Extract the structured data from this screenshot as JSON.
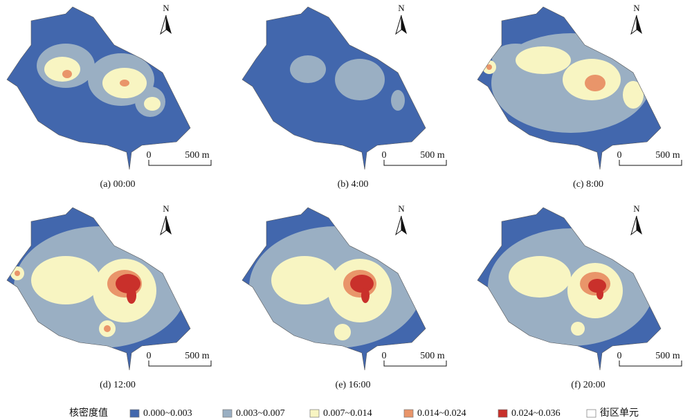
{
  "panels": [
    {
      "caption": "(a) 00:00",
      "north": "N",
      "scale_start": "0",
      "scale_end": "500 m"
    },
    {
      "caption": "(b) 4:00",
      "north": "N",
      "scale_start": "0",
      "scale_end": "500 m"
    },
    {
      "caption": "(c) 8:00",
      "north": "N",
      "scale_start": "0",
      "scale_end": "500 m"
    },
    {
      "caption": "(d) 12:00",
      "north": "N",
      "scale_start": "0",
      "scale_end": "500 m"
    },
    {
      "caption": "(e) 16:00",
      "north": "N",
      "scale_start": "0",
      "scale_end": "500 m"
    },
    {
      "caption": "(f) 20:00",
      "north": "N",
      "scale_start": "0",
      "scale_end": "500 m"
    }
  ],
  "legend": {
    "title": "核密度值",
    "items": [
      {
        "label": "0.000~0.003",
        "color": "#4267ad"
      },
      {
        "label": "0.003~0.007",
        "color": "#9aafc3"
      },
      {
        "label": "0.007~0.014",
        "color": "#f8f5c2"
      },
      {
        "label": "0.014~0.024",
        "color": "#e9956a"
      },
      {
        "label": "0.024~0.036",
        "color": "#c9302b"
      },
      {
        "label": "街区单元",
        "color": "#ffffff"
      }
    ]
  }
}
